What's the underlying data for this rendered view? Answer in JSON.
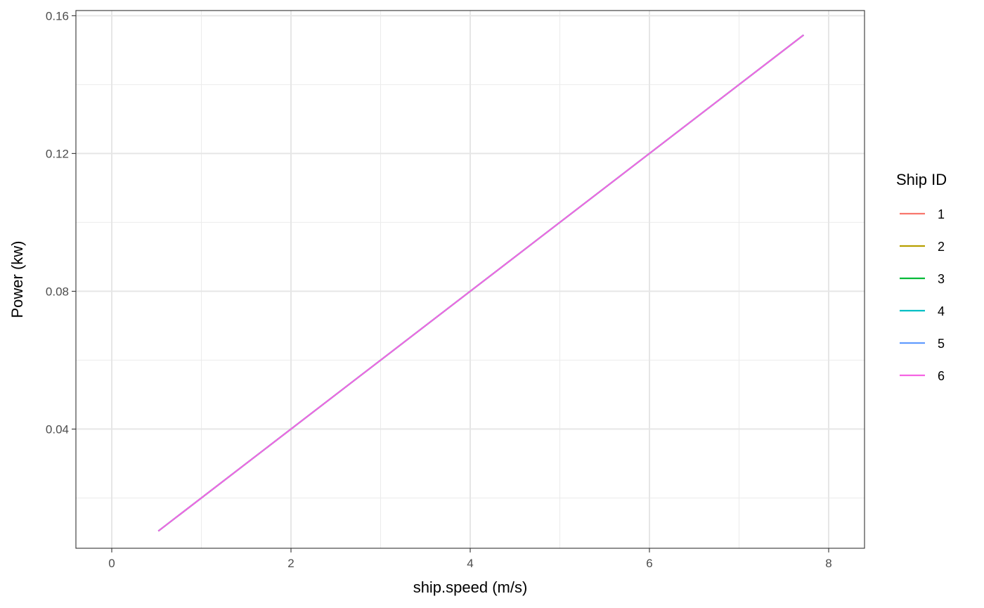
{
  "chart_data": {
    "type": "line",
    "title": "",
    "xlabel": "ship.speed (m/s)",
    "ylabel": "Power (kw)",
    "xlim": [
      -0.4,
      8.4
    ],
    "ylim": [
      0.0054,
      0.1615
    ],
    "x_ticks": [
      0,
      2,
      4,
      6,
      8
    ],
    "y_ticks": [
      0.04,
      0.08,
      0.12,
      0.16
    ],
    "x_tick_labels": [
      "0",
      "2",
      "4",
      "6",
      "8"
    ],
    "y_tick_labels": [
      "0.04",
      "0.08",
      "0.12",
      "0.16"
    ],
    "x_minor_ticks": [
      1,
      3,
      5,
      7
    ],
    "y_minor_ticks": [
      0.02,
      0.06,
      0.1,
      0.14
    ],
    "grid": true,
    "legend": {
      "title": "Ship ID",
      "position": "right"
    },
    "series": [
      {
        "name": "1",
        "color": "#F8766D",
        "x": [
          0.52,
          7.72
        ],
        "y": [
          0.0104,
          0.1544
        ]
      },
      {
        "name": "2",
        "color": "#B79F00",
        "x": [
          0.52,
          7.72
        ],
        "y": [
          0.0104,
          0.1544
        ]
      },
      {
        "name": "3",
        "color": "#00BA38",
        "x": [
          0.52,
          7.72
        ],
        "y": [
          0.0104,
          0.1544
        ]
      },
      {
        "name": "4",
        "color": "#00BFC4",
        "x": [
          0.52,
          7.72
        ],
        "y": [
          0.0104,
          0.1544
        ]
      },
      {
        "name": "5",
        "color": "#619CFF",
        "x": [
          0.52,
          7.72
        ],
        "y": [
          0.0104,
          0.1544
        ]
      },
      {
        "name": "6",
        "color": "#F564E3",
        "x": [
          0.52,
          7.72
        ],
        "y": [
          0.0104,
          0.1544
        ]
      }
    ]
  }
}
